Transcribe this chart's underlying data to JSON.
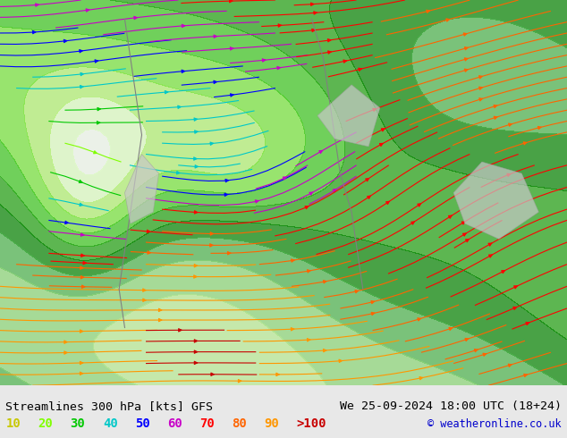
{
  "title_left": "Streamlines 300 hPa [kts] GFS",
  "title_right": "We 25-09-2024 18:00 UTC (18+24)",
  "copyright": "© weatheronline.co.uk",
  "legend_values": [
    "10",
    "20",
    "30",
    "40",
    "50",
    "60",
    "70",
    "80",
    "90",
    ">100"
  ],
  "legend_colors": [
    "#c8c800",
    "#80ff00",
    "#00c800",
    "#00c8c8",
    "#0000ff",
    "#c800c8",
    "#ff0000",
    "#ff6400",
    "#ff9600",
    "#c80000"
  ],
  "background_color": "#e8e8e8",
  "map_bg": "#f0f0f0",
  "fig_width": 6.34,
  "fig_height": 4.9,
  "dpi": 100,
  "bottom_bar_color": "#ffffff",
  "title_fontsize": 9.5,
  "legend_fontsize": 10,
  "copyright_fontsize": 8.5
}
